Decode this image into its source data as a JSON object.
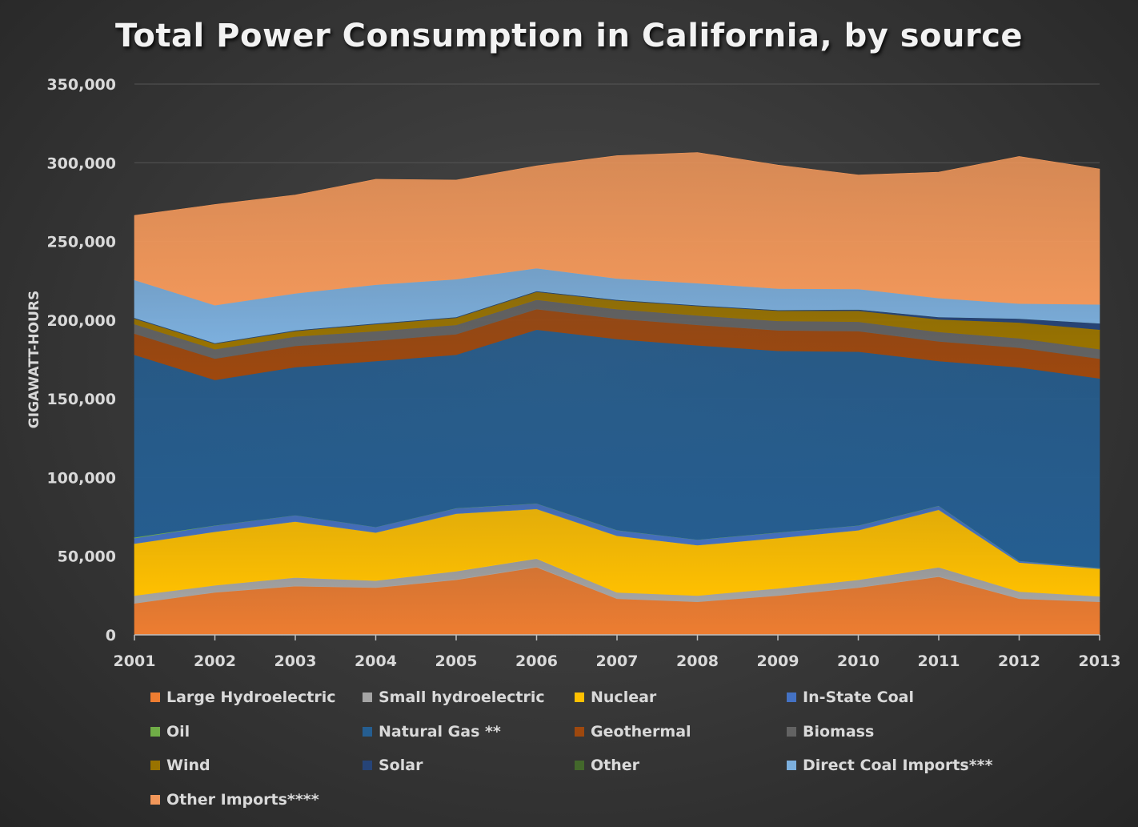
{
  "chart_data": {
    "type": "area",
    "stacked": true,
    "title": "Total Power Consumption in California, by source",
    "xlabel": "",
    "ylabel": "GIGAWATT-HOURS",
    "ylim": [
      0,
      350000
    ],
    "yticks": [
      0,
      50000,
      100000,
      150000,
      200000,
      250000,
      300000,
      350000
    ],
    "ytick_labels": [
      "0",
      "50,000",
      "100,000",
      "150,000",
      "200,000",
      "250,000",
      "300,000",
      "350,000"
    ],
    "x": [
      "2001",
      "2002",
      "2003",
      "2004",
      "2005",
      "2006",
      "2007",
      "2008",
      "2009",
      "2010",
      "2011",
      "2012",
      "2013"
    ],
    "grid": true,
    "legend_position": "bottom",
    "series": [
      {
        "name": "Large Hydroelectric",
        "color": "#ED7D31",
        "values": [
          20000,
          27000,
          31000,
          30000,
          35000,
          43000,
          23000,
          21000,
          25000,
          30000,
          37000,
          23000,
          21000
        ]
      },
      {
        "name": "Small hydroelectric",
        "color": "#A5A5A5",
        "values": [
          5000,
          4500,
          5500,
          4500,
          5500,
          5500,
          4000,
          4000,
          4500,
          5000,
          6000,
          4500,
          3500
        ]
      },
      {
        "name": "Nuclear",
        "color": "#FFC000",
        "values": [
          33000,
          34000,
          35500,
          30500,
          36500,
          31500,
          36000,
          32000,
          32000,
          31500,
          36500,
          18500,
          17500
        ]
      },
      {
        "name": "In-State Coal",
        "color": "#4472C4",
        "values": [
          3500,
          4000,
          4000,
          3500,
          3500,
          3500,
          3500,
          3500,
          3500,
          3000,
          2500,
          1000,
          500
        ]
      },
      {
        "name": "Oil",
        "color": "#70AD47",
        "values": [
          500,
          100,
          100,
          100,
          100,
          100,
          100,
          100,
          100,
          100,
          100,
          100,
          100
        ]
      },
      {
        "name": "Natural Gas **",
        "color": "#255E91",
        "values": [
          116000,
          92400,
          94000,
          105400,
          97400,
          110400,
          121400,
          123400,
          115400,
          110400,
          91900,
          122900,
          120400
        ]
      },
      {
        "name": "Geothermal",
        "color": "#9E480E",
        "values": [
          13500,
          13500,
          13500,
          13000,
          13000,
          13000,
          13000,
          13000,
          13000,
          13000,
          12500,
          12500,
          12500
        ]
      },
      {
        "name": "Biomass",
        "color": "#636363",
        "values": [
          6000,
          6000,
          6000,
          6000,
          6000,
          6000,
          6000,
          6000,
          6000,
          6000,
          6000,
          6000,
          6000
        ]
      },
      {
        "name": "Wind",
        "color": "#997300",
        "values": [
          3500,
          3500,
          3500,
          4500,
          4500,
          5000,
          5500,
          6000,
          6500,
          7000,
          8000,
          10000,
          12500
        ]
      },
      {
        "name": "Solar",
        "color": "#264478",
        "values": [
          500,
          500,
          500,
          500,
          500,
          500,
          500,
          500,
          500,
          800,
          1500,
          2500,
          4000
        ]
      },
      {
        "name": "Other",
        "color": "#43682B",
        "values": [
          0,
          0,
          0,
          0,
          0,
          0,
          0,
          0,
          0,
          0,
          0,
          0,
          0
        ]
      },
      {
        "name": "Direct Coal Imports***",
        "color": "#7CAFDD",
        "values": [
          24000,
          24000,
          23400,
          24500,
          24000,
          14500,
          13500,
          14000,
          13500,
          13000,
          12000,
          9500,
          12000
        ]
      },
      {
        "name": "Other Imports****",
        "color": "#F1975A",
        "values": [
          41000,
          64000,
          62500,
          67000,
          63000,
          65000,
          78000,
          83000,
          78500,
          72400,
          80000,
          93500,
          86000
        ]
      }
    ]
  },
  "legend": [
    {
      "label": "Large Hydroelectric",
      "color": "#ED7D31"
    },
    {
      "label": "Small hydroelectric",
      "color": "#A5A5A5"
    },
    {
      "label": "Nuclear",
      "color": "#FFC000"
    },
    {
      "label": "In-State Coal",
      "color": "#4472C4"
    },
    {
      "label": "Oil",
      "color": "#70AD47"
    },
    {
      "label": "Natural Gas **",
      "color": "#255E91"
    },
    {
      "label": "Geothermal",
      "color": "#9E480E"
    },
    {
      "label": "Biomass",
      "color": "#636363"
    },
    {
      "label": "Wind",
      "color": "#997300"
    },
    {
      "label": "Solar",
      "color": "#264478"
    },
    {
      "label": "Other",
      "color": "#43682B"
    },
    {
      "label": "Direct Coal Imports***",
      "color": "#7CAFDD"
    },
    {
      "label": "Other Imports****",
      "color": "#F1975A"
    }
  ]
}
